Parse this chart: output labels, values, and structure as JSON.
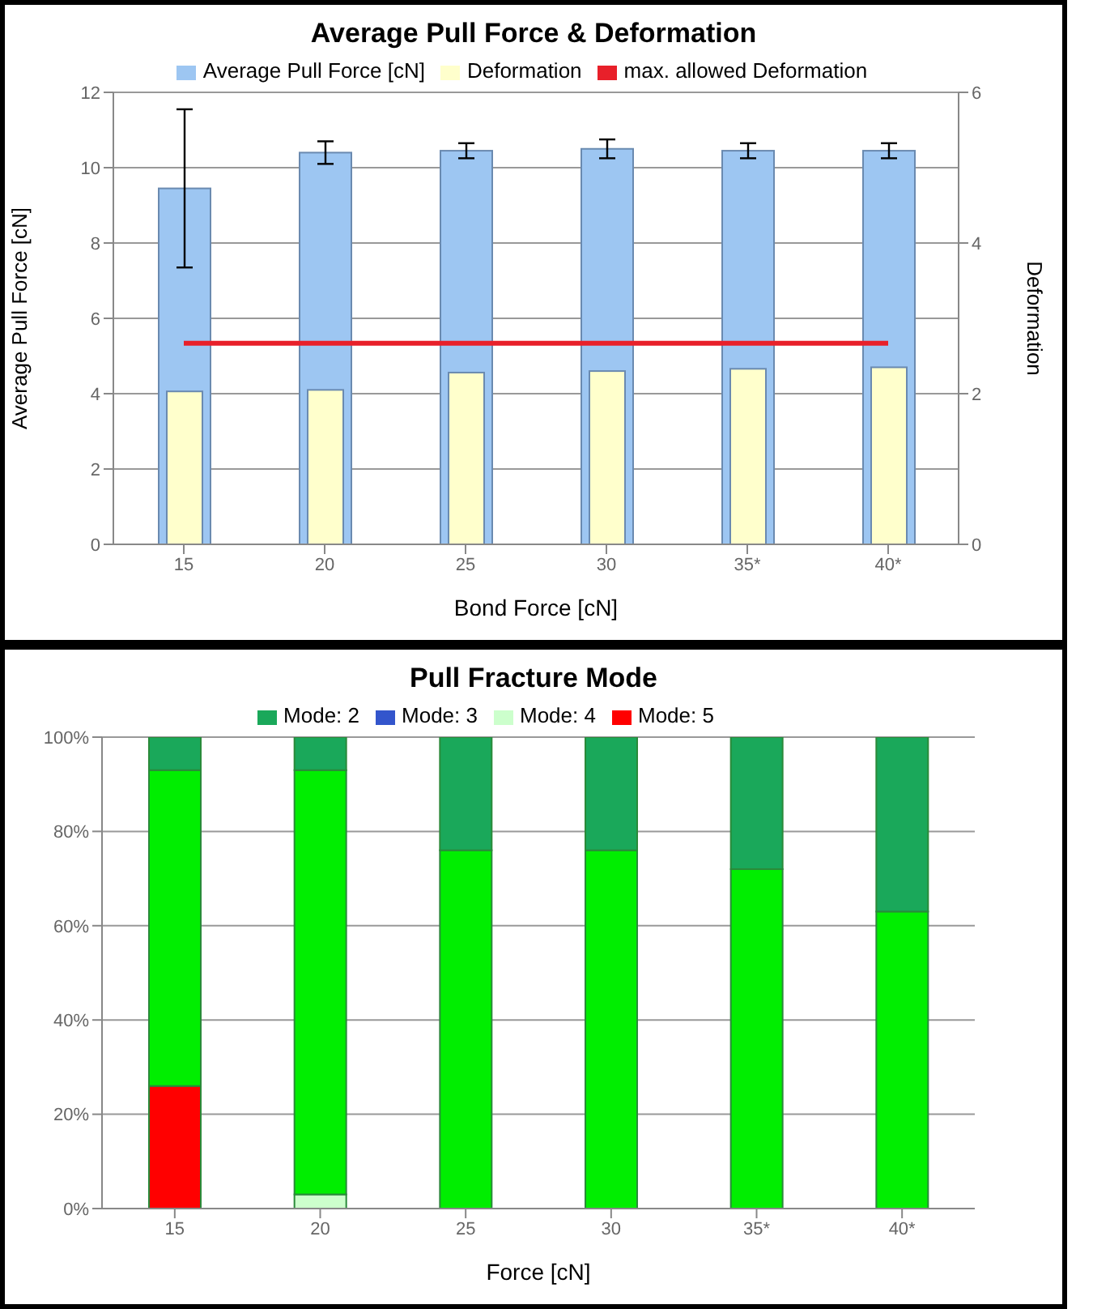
{
  "chart_data": [
    {
      "type": "bar",
      "title": "Average Pull Force & Deformation",
      "xlabel": "Bond Force [cN]",
      "ylabel": "Average Pull Force [cN]",
      "y2label": "Deformation",
      "categories": [
        "15",
        "20",
        "25",
        "30",
        "35*",
        "40*"
      ],
      "series": [
        {
          "name": "Average Pull Force [cN]",
          "color": "#9dc6f2",
          "values": [
            9.45,
            10.4,
            10.45,
            10.5,
            10.45,
            10.45
          ],
          "errors": [
            2.1,
            0.3,
            0.2,
            0.25,
            0.2,
            0.2
          ]
        },
        {
          "name": "Deformation",
          "color": "#ffffcc",
          "axis": "y2",
          "values": [
            2.03,
            2.05,
            2.28,
            2.3,
            2.33,
            2.35
          ]
        },
        {
          "name": "max. allowed Deformation",
          "type": "line",
          "color": "#e8202a",
          "axis": "y2",
          "values": [
            2.67,
            2.67,
            2.67,
            2.67,
            2.67,
            2.67
          ]
        }
      ],
      "ylim": [
        0,
        12
      ],
      "yticks": [
        0,
        2,
        4,
        6,
        8,
        10,
        12
      ],
      "y2lim": [
        0,
        6
      ],
      "y2ticks": [
        0,
        2,
        4,
        6
      ],
      "grid": "y",
      "legend": "top",
      "marker": "none"
    },
    {
      "type": "bar",
      "title": "Pull Fracture Mode",
      "xlabel": "Force [cN]",
      "categories": [
        "15",
        "20",
        "25",
        "30",
        "35*",
        "40*"
      ],
      "stacked": true,
      "series": [
        {
          "name": "Mode: 5",
          "color": "#ff0000",
          "values": [
            26,
            0,
            0,
            0,
            0,
            0
          ]
        },
        {
          "name": "Mode: 4",
          "color": "#ccffcc",
          "values": [
            0,
            3,
            0,
            0,
            0,
            0
          ]
        },
        {
          "color": "#00ee00",
          "values": [
            67,
            90,
            76,
            76,
            72,
            63
          ]
        },
        {
          "name": "Mode: 3",
          "color": "#3355cc",
          "values": [
            0,
            0,
            0,
            0,
            0,
            0
          ]
        },
        {
          "name": "Mode: 2",
          "color": "#1aa85a",
          "values": [
            7,
            7,
            24,
            24,
            28,
            37
          ]
        }
      ],
      "ylim": [
        0,
        100
      ],
      "yticks": [
        {
          "value": 0,
          "label": "0%"
        },
        {
          "value": 20,
          "label": "20%"
        },
        {
          "value": 40,
          "label": "40%"
        },
        {
          "value": 60,
          "label": "60%"
        },
        {
          "value": 80,
          "label": "80%"
        },
        {
          "value": 100,
          "label": "100%"
        }
      ],
      "grid": "y",
      "legend": "top"
    }
  ]
}
